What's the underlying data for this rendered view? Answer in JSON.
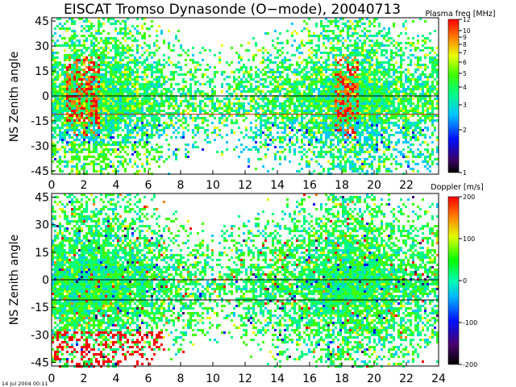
{
  "title": "EISCAT Tromso Dynasonde (O−mode),  20040713",
  "footer_stamp": "14 Jul 2004 00:11",
  "chart_data": [
    {
      "type": "heatmap",
      "panel": "top",
      "title": "EISCAT Tromso Dynasonde (O−mode),  20040713",
      "xlabel": "",
      "ylabel": "NS Zenith angle",
      "xlim": [
        0,
        24
      ],
      "ylim": [
        -47,
        47
      ],
      "x_ticks": [
        0,
        2,
        4,
        6,
        8,
        10,
        12,
        14,
        16,
        18,
        20,
        22
      ],
      "y_ticks": [
        45,
        30,
        15,
        0,
        -15,
        -30,
        -45
      ],
      "reference_lines": [
        {
          "y": 0,
          "color": "#000000"
        },
        {
          "y": -11,
          "color": "#cc2200"
        }
      ],
      "colorbar": {
        "label": "Plasma freq [MHz]",
        "scale": "log",
        "range": [
          1,
          12
        ],
        "ticks": [
          12,
          10,
          9,
          8,
          7,
          6,
          5,
          4,
          3,
          2,
          1
        ],
        "colormap": "rainbow"
      },
      "dominant_value_range": [
        2.5,
        6
      ]
    },
    {
      "type": "heatmap",
      "panel": "bottom",
      "title": "",
      "xlabel": "",
      "ylabel": "NS Zenith angle",
      "xlim": [
        0,
        24
      ],
      "ylim": [
        -47,
        47
      ],
      "x_ticks": [
        0,
        2,
        4,
        6,
        8,
        10,
        12,
        14,
        16,
        18,
        20,
        22,
        24
      ],
      "y_ticks": [
        45,
        30,
        15,
        0,
        -15,
        -30,
        -45
      ],
      "reference_lines": [
        {
          "y": 0,
          "color": "#000000"
        },
        {
          "y": -11,
          "color": "#000000"
        }
      ],
      "colorbar": {
        "label": "Doppler [m/s]",
        "scale": "linear",
        "range": [
          -200,
          200
        ],
        "ticks": [
          200,
          100,
          0,
          -100,
          -200
        ],
        "colormap": "rainbow"
      },
      "dominant_value_range": [
        -20,
        60
      ]
    }
  ]
}
